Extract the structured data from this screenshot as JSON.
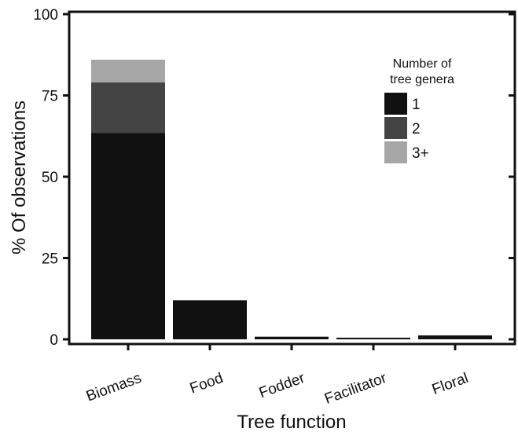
{
  "chart_data": {
    "type": "bar",
    "stacked": true,
    "categories": [
      "Biomass",
      "Food",
      "Fodder",
      "Facilitator",
      "Floral"
    ],
    "series": [
      {
        "name": "1",
        "values": [
          63.5,
          12,
          0.8,
          0.5,
          1.2
        ],
        "color": "#111111"
      },
      {
        "name": "2",
        "values": [
          15.5,
          0,
          0,
          0,
          0
        ],
        "color": "#444444"
      },
      {
        "name": "3+",
        "values": [
          7,
          0,
          0,
          0,
          0
        ],
        "color": "#a6a6a6"
      }
    ],
    "xlabel": "Tree function",
    "ylabel": "% Of observations",
    "ylim": [
      0,
      100
    ],
    "yticks": [
      0,
      25,
      50,
      75,
      100
    ],
    "legend": {
      "title": "Number of tree genera",
      "placement": "top-right"
    },
    "grid": false
  }
}
